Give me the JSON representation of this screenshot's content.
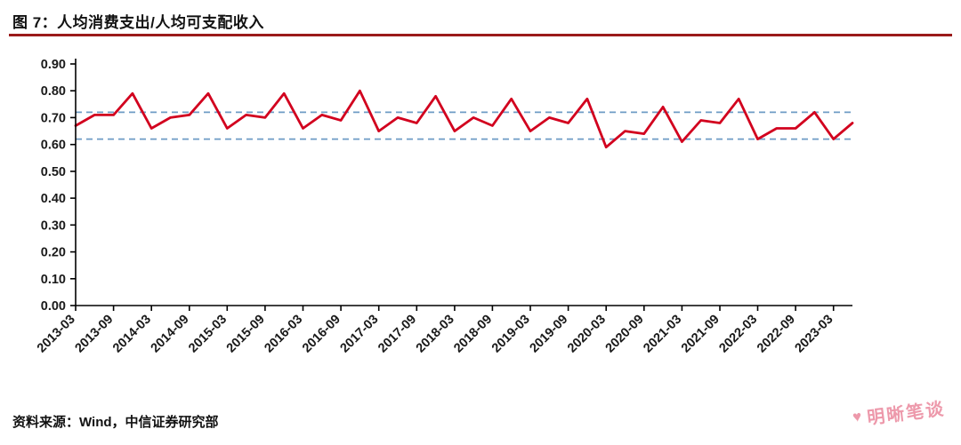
{
  "title": {
    "text": "图 7：人均消费支出/人均可支配收入"
  },
  "source": {
    "text": "资料来源：Wind，中信证券研究部"
  },
  "watermark": {
    "icon": "heart-icon",
    "heart_glyph": "♥",
    "text": "明晰笔谈"
  },
  "colors": {
    "series": "#d2001e",
    "reference": "#6e9bc5",
    "title_rule": "#9b1b1b",
    "axis": "#000000",
    "watermark": "#ec8fa2"
  },
  "chart_data": {
    "type": "line",
    "title": "图 7：人均消费支出/人均可支配收入",
    "xlabel": "",
    "ylabel": "",
    "ylim": [
      0.0,
      0.9
    ],
    "yticks": [
      0.0,
      0.1,
      0.2,
      0.3,
      0.4,
      0.5,
      0.6,
      0.7,
      0.8,
      0.9
    ],
    "grid": false,
    "legend_position": "none",
    "x": [
      "2013-03",
      "2013-06",
      "2013-09",
      "2013-12",
      "2014-03",
      "2014-06",
      "2014-09",
      "2014-12",
      "2015-03",
      "2015-06",
      "2015-09",
      "2015-12",
      "2016-03",
      "2016-06",
      "2016-09",
      "2016-12",
      "2017-03",
      "2017-06",
      "2017-09",
      "2017-12",
      "2018-03",
      "2018-06",
      "2018-09",
      "2018-12",
      "2019-03",
      "2019-06",
      "2019-09",
      "2019-12",
      "2020-03",
      "2020-06",
      "2020-09",
      "2020-12",
      "2021-03",
      "2021-06",
      "2021-09",
      "2021-12",
      "2022-03",
      "2022-06",
      "2022-09",
      "2022-12",
      "2023-03",
      "2023-06"
    ],
    "xtick_labels": [
      "2013-03",
      "2013-09",
      "2014-03",
      "2014-09",
      "2015-03",
      "2015-09",
      "2016-03",
      "2016-09",
      "2017-03",
      "2017-09",
      "2018-03",
      "2018-09",
      "2019-03",
      "2019-09",
      "2020-03",
      "2020-09",
      "2021-03",
      "2021-09",
      "2022-03",
      "2022-09",
      "2023-03"
    ],
    "series": [
      {
        "name": "人均消费支出/人均可支配收入",
        "values": [
          0.67,
          0.71,
          0.71,
          0.79,
          0.66,
          0.7,
          0.71,
          0.79,
          0.66,
          0.71,
          0.7,
          0.79,
          0.66,
          0.71,
          0.69,
          0.8,
          0.65,
          0.7,
          0.68,
          0.78,
          0.65,
          0.7,
          0.67,
          0.77,
          0.65,
          0.7,
          0.68,
          0.77,
          0.59,
          0.65,
          0.64,
          0.74,
          0.61,
          0.69,
          0.68,
          0.77,
          0.62,
          0.66,
          0.66,
          0.72,
          0.62,
          0.68
        ]
      }
    ],
    "reference_lines": [
      0.72,
      0.62
    ]
  }
}
